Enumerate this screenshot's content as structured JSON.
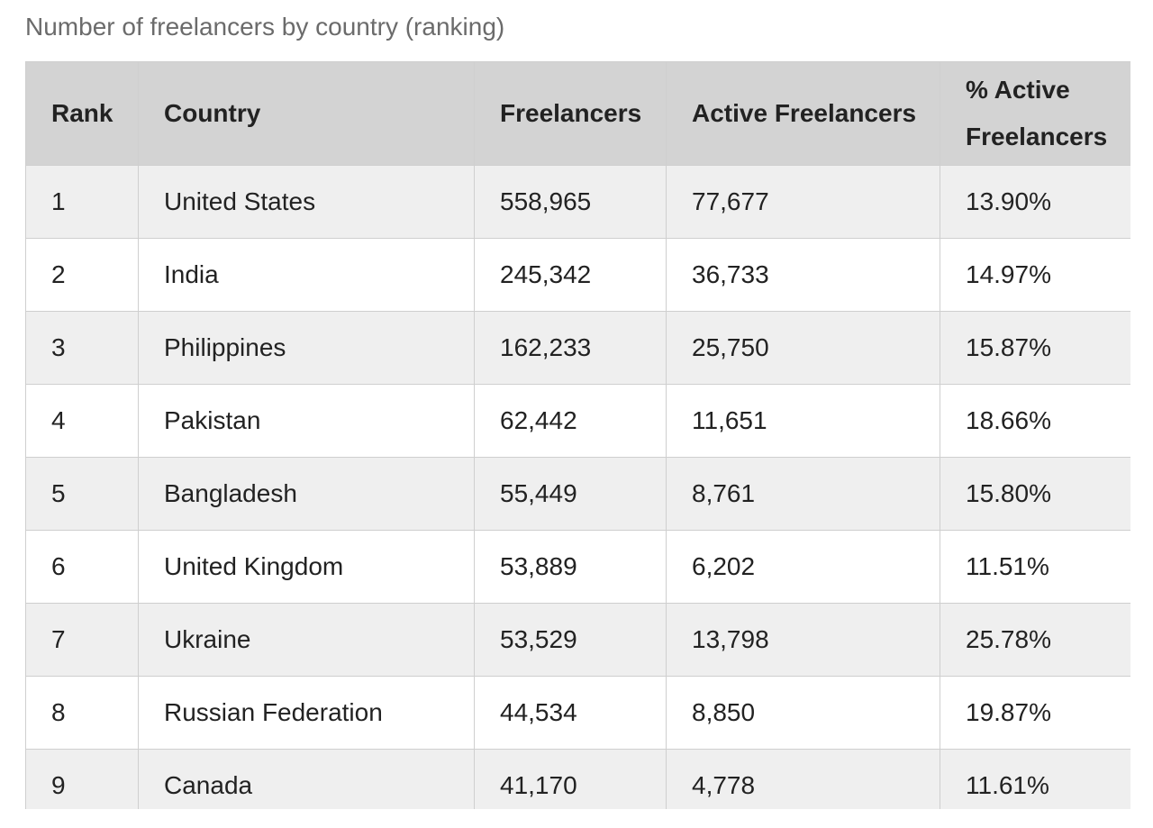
{
  "caption": "Number of freelancers by country (ranking)",
  "chart_data": {
    "type": "table",
    "title": "Number of freelancers by country (ranking)",
    "columns": [
      "Rank",
      "Country",
      "Freelancers",
      "Active Freelancers",
      "% Active Freelancers"
    ],
    "rows": [
      [
        "1",
        "United States",
        "558,965",
        "77,677",
        "13.90%"
      ],
      [
        "2",
        "India",
        "245,342",
        "36,733",
        "14.97%"
      ],
      [
        "3",
        "Philippines",
        "162,233",
        "25,750",
        "15.87%"
      ],
      [
        "4",
        "Pakistan",
        "62,442",
        "11,651",
        "18.66%"
      ],
      [
        "5",
        "Bangladesh",
        "55,449",
        "8,761",
        "15.80%"
      ],
      [
        "6",
        "United Kingdom",
        "53,889",
        "6,202",
        "11.51%"
      ],
      [
        "7",
        "Ukraine",
        "53,529",
        "13,798",
        "25.78%"
      ],
      [
        "8",
        "Russian Federation",
        "44,534",
        "8,850",
        "19.87%"
      ],
      [
        "9",
        "Canada",
        "41,170",
        "4,778",
        "11.61%"
      ]
    ]
  },
  "colors": {
    "header_bg": "#d3d3d3",
    "row_odd_bg": "#efefef",
    "row_even_bg": "#ffffff",
    "border": "#cfcfcf",
    "caption_text": "#6b6b6b"
  }
}
